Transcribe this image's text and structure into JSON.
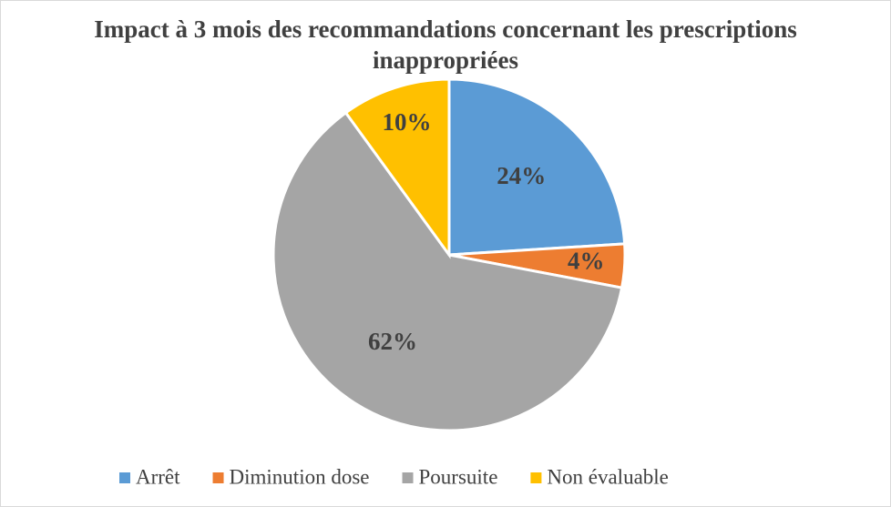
{
  "chart_data": {
    "type": "pie",
    "title": "Impact à 3 mois des recommandations concernant les prescriptions inappropriées",
    "categories": [
      "Arrêt",
      "Diminution dose",
      "Poursuite",
      "Non évaluable"
    ],
    "values": [
      24,
      4,
      62,
      10
    ],
    "value_labels": [
      "24%",
      "4%",
      "62%",
      "10%"
    ],
    "colors": [
      "#5b9bd5",
      "#ed7d31",
      "#a5a5a5",
      "#ffc000"
    ],
    "legend": "bottom"
  }
}
